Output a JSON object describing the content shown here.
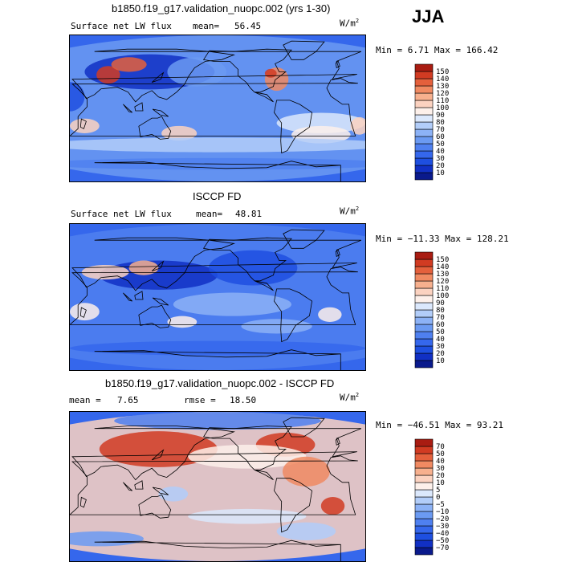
{
  "season": "JJA",
  "panels": [
    {
      "title": "b1850.f19_g17.validation_nuopc.002 (yrs 1-30)",
      "left_label": "Surface net LW flux",
      "stat1_label": "mean=",
      "stat1_value": "56.45",
      "stat2_label": "",
      "stat2_value": "",
      "units_base": "W/m",
      "units_exp": "2",
      "minmax": "Min =   6.71 Max = 166.42",
      "colorbar_ticks": [
        "10",
        "20",
        "30",
        "40",
        "50",
        "60",
        "70",
        "80",
        "90",
        "100",
        "110",
        "120",
        "130",
        "140",
        "150"
      ],
      "colors": [
        "#0a1a8c",
        "#1130c4",
        "#1e4fe0",
        "#3567ec",
        "#4f80f0",
        "#6b9af2",
        "#8cb2f6",
        "#b2cdf9",
        "#dbe8fc",
        "#fdf0ea",
        "#fbd2c0",
        "#f7b08e",
        "#f08a62",
        "#e4603c",
        "#d13b22",
        "#a91c12"
      ],
      "map_style": "model"
    },
    {
      "title": "ISCCP FD",
      "left_label": "Surface net LW flux",
      "stat1_label": "mean=",
      "stat1_value": "48.81",
      "stat2_label": "",
      "stat2_value": "",
      "units_base": "W/m",
      "units_exp": "2",
      "minmax": "Min = −11.33 Max = 128.21",
      "colorbar_ticks": [
        "10",
        "20",
        "30",
        "40",
        "50",
        "60",
        "70",
        "80",
        "90",
        "100",
        "110",
        "120",
        "130",
        "140",
        "150"
      ],
      "colors": [
        "#0a1a8c",
        "#1130c4",
        "#1e4fe0",
        "#3567ec",
        "#4f80f0",
        "#6b9af2",
        "#8cb2f6",
        "#b2cdf9",
        "#dbe8fc",
        "#fdf0ea",
        "#fbd2c0",
        "#f7b08e",
        "#f08a62",
        "#e4603c",
        "#d13b22",
        "#a91c12"
      ],
      "map_style": "obs"
    },
    {
      "title": "b1850.f19_g17.validation_nuopc.002 - ISCCP FD",
      "left_label": "",
      "stat1_label": "mean =",
      "stat1_value": "7.65",
      "stat2_label": "rmse =",
      "stat2_value": "18.50",
      "units_base": "W/m",
      "units_exp": "2",
      "minmax": "Min = −46.51 Max =  93.21",
      "colorbar_ticks": [
        "−70",
        "−50",
        "−40",
        "−30",
        "−20",
        "−10",
        "−5",
        "0",
        "5",
        "10",
        "20",
        "30",
        "40",
        "50",
        "70"
      ],
      "colors": [
        "#0a1a8c",
        "#1130c4",
        "#1e4fe0",
        "#3567ec",
        "#4f80f0",
        "#6b9af2",
        "#8cb2f6",
        "#b2cdf9",
        "#dbe8fc",
        "#fdf0ea",
        "#fbd2c0",
        "#f7b08e",
        "#f08a62",
        "#e4603c",
        "#d13b22",
        "#a91c12"
      ],
      "map_style": "diff"
    }
  ]
}
